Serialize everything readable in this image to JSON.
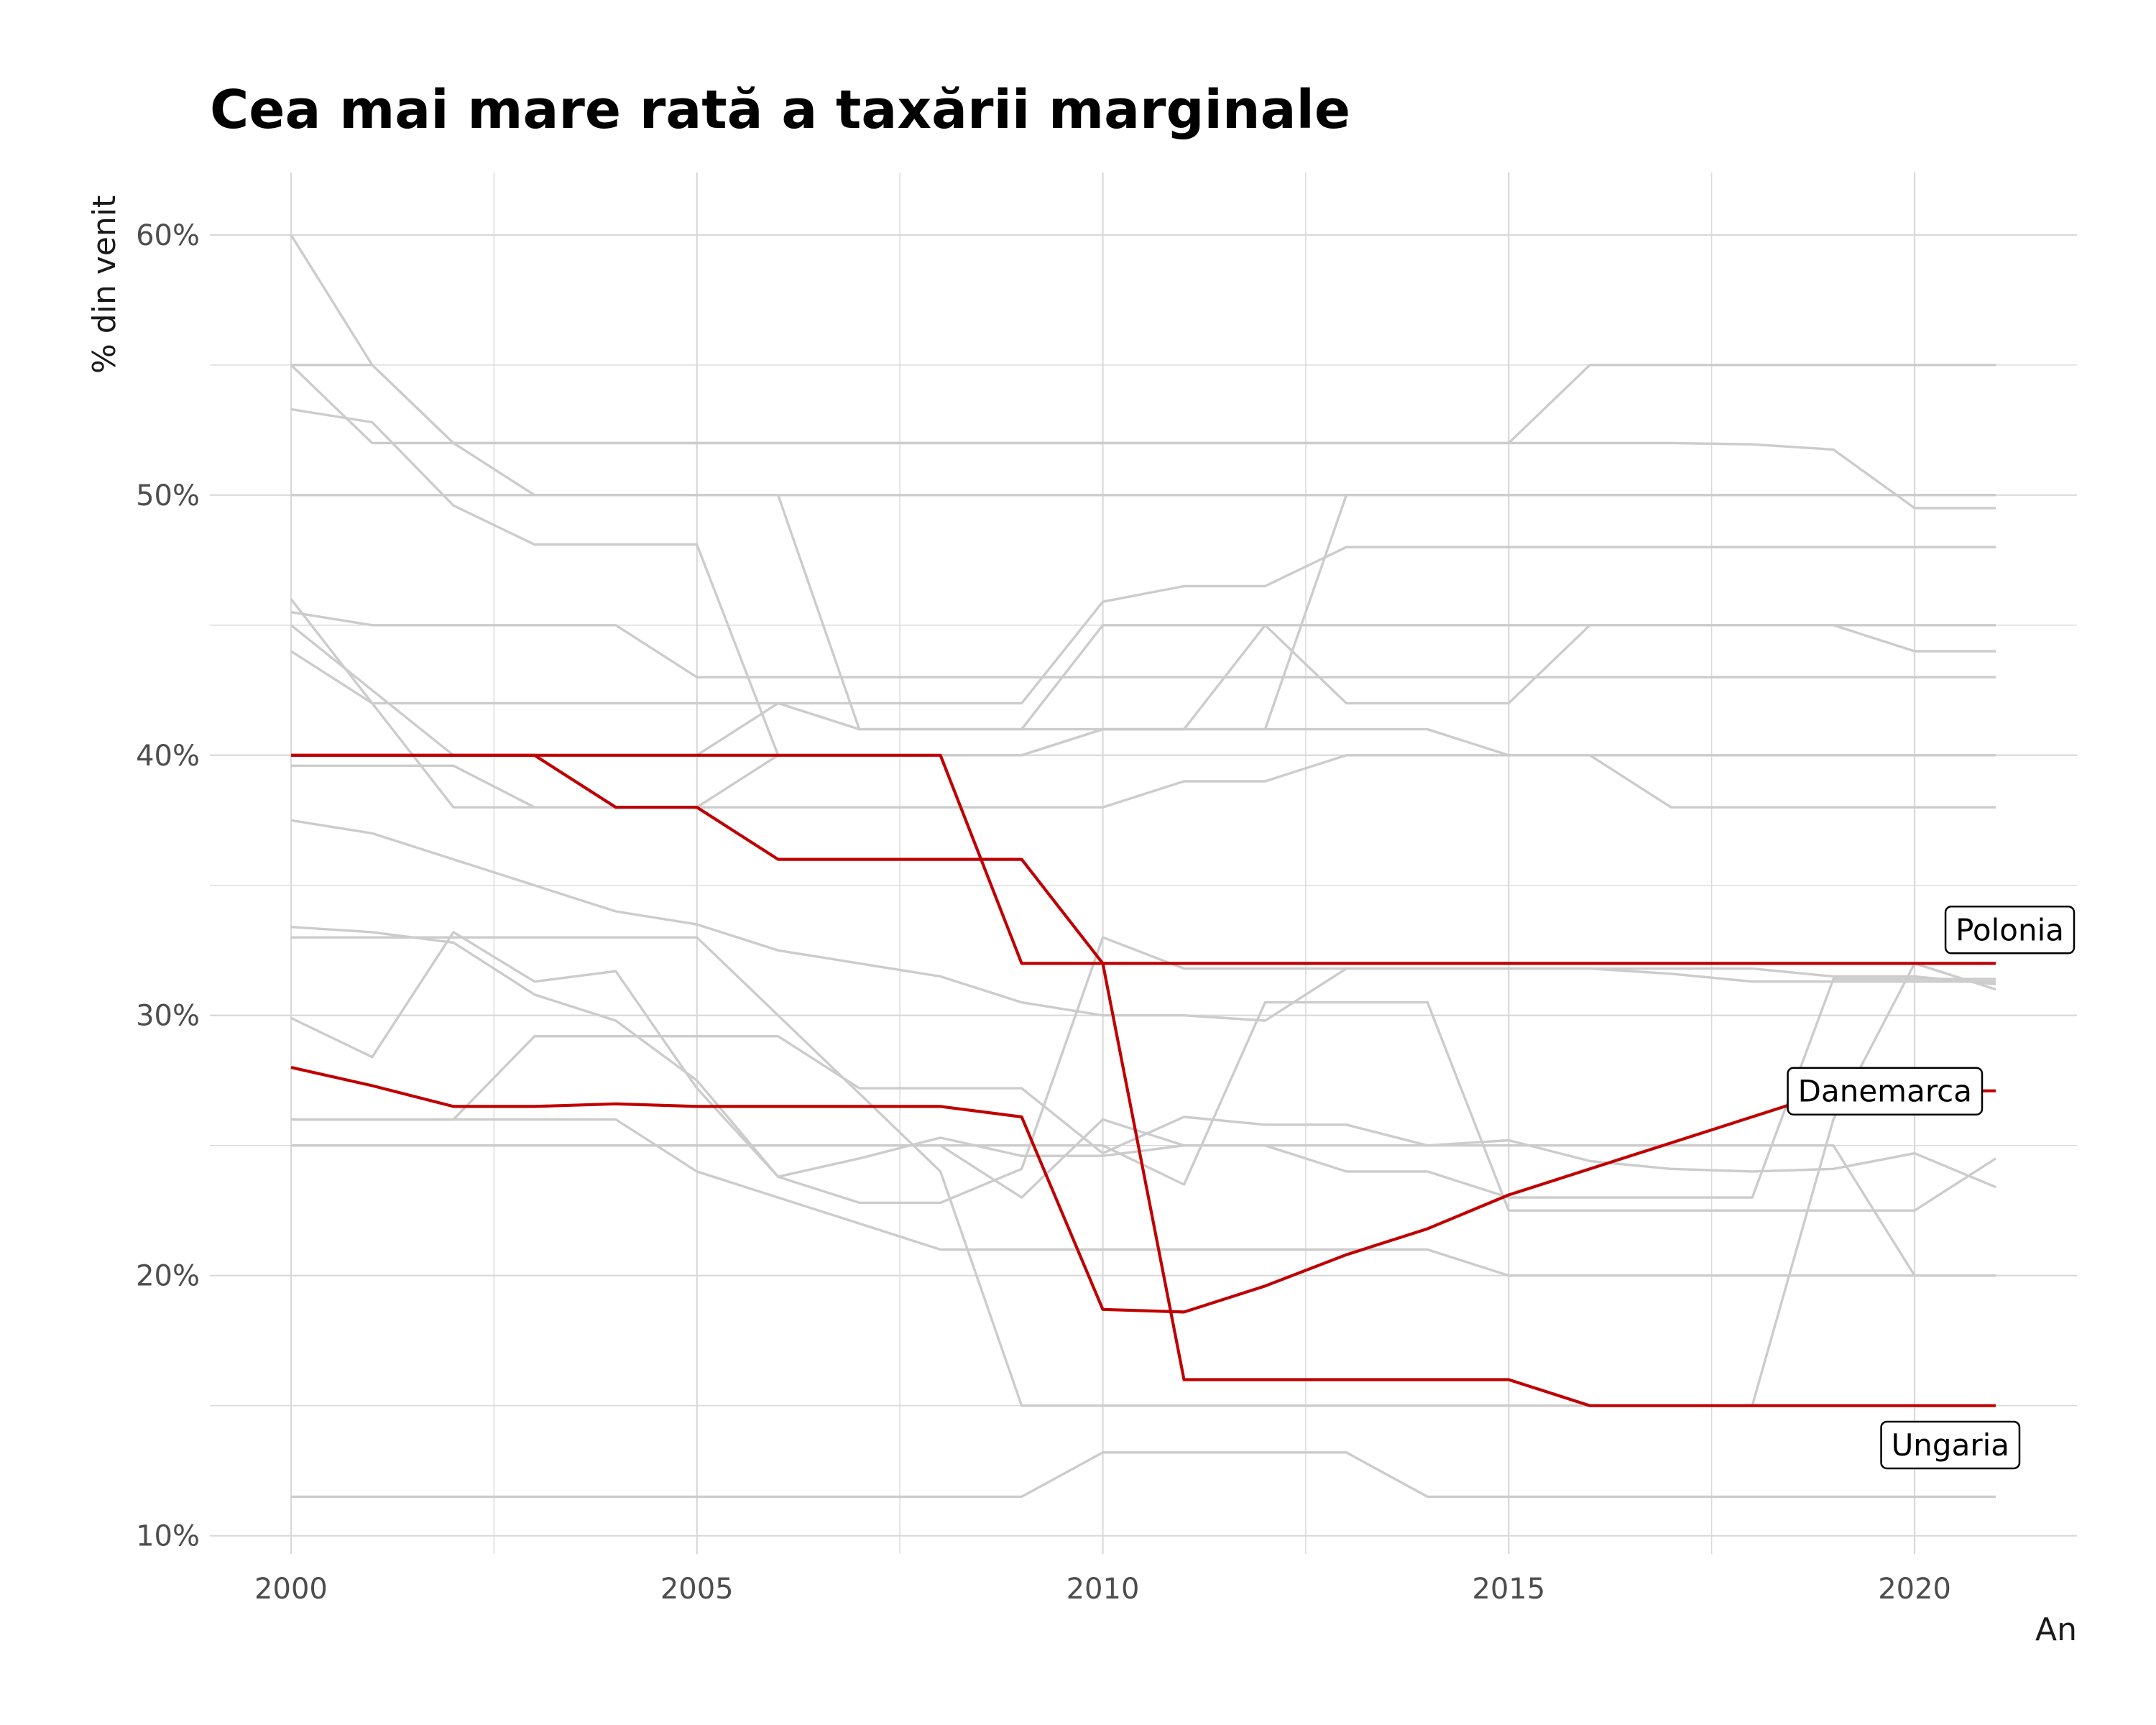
{
  "chart_data": {
    "type": "line",
    "title": "Cea mai mare rată a taxării marginale",
    "xlabel": "An",
    "ylabel": "% din venit",
    "xlim": [
      1999,
      2022
    ],
    "ylim": [
      9.3,
      62.4
    ],
    "x_ticks": [
      2000,
      2005,
      2010,
      2015,
      2020
    ],
    "x_tick_labels": [
      "2000",
      "2005",
      "2010",
      "2015",
      "2020"
    ],
    "y_ticks": [
      10,
      20,
      30,
      40,
      50,
      60
    ],
    "y_tick_labels": [
      "10%",
      "20%",
      "30%",
      "40%",
      "50%",
      "60%"
    ],
    "grid": true,
    "legend": "none",
    "colors": {
      "highlight": "#c00000",
      "background_series": "#cccccc",
      "grid": "#d9d9d9"
    },
    "x": [
      2000,
      2001,
      2002,
      2003,
      2004,
      2005,
      2006,
      2007,
      2008,
      2009,
      2010,
      2011,
      2012,
      2013,
      2014,
      2015,
      2016,
      2017,
      2018,
      2019,
      2020,
      2021
    ],
    "series": [
      {
        "highlight": false,
        "values": [
          60,
          55,
          52,
          50,
          50,
          50,
          50,
          50,
          50,
          50,
          50,
          50,
          50,
          50,
          50,
          50,
          50,
          50,
          50,
          50,
          50,
          50
        ]
      },
      {
        "highlight": false,
        "values": [
          55,
          52,
          52,
          52,
          52,
          52,
          52,
          52,
          52,
          52,
          52,
          52,
          52,
          52,
          52,
          52,
          52,
          52,
          51.95,
          51.75,
          49.5,
          49.5
        ]
      },
      {
        "highlight": false,
        "values": [
          55,
          55,
          52,
          52,
          52,
          52,
          52,
          52,
          52,
          52,
          52,
          52,
          52,
          52,
          52,
          52,
          55,
          55,
          55,
          55,
          55,
          55
        ]
      },
      {
        "highlight": false,
        "values": [
          53.3,
          52.8,
          49.6,
          48.1,
          48.1,
          48.1,
          40,
          40,
          40,
          40,
          41,
          41,
          41,
          50,
          50,
          50,
          50,
          50,
          50,
          50,
          50,
          50
        ]
      },
      {
        "highlight": false,
        "values": [
          50,
          50,
          50,
          50,
          50,
          50,
          50,
          41,
          41,
          41,
          45,
          45,
          45,
          45,
          45,
          45,
          45,
          45,
          45,
          45,
          45,
          45
        ]
      },
      {
        "highlight": false,
        "values": [
          45.5,
          45,
          45,
          45,
          45,
          43,
          43,
          43,
          43,
          43,
          43,
          43,
          43,
          43,
          43,
          43,
          43,
          43,
          43,
          43,
          43,
          43
        ]
      },
      {
        "highlight": false,
        "values": [
          46,
          42,
          42,
          42,
          42,
          42,
          42,
          42,
          42,
          42,
          45.9,
          46.5,
          46.5,
          48,
          48,
          48,
          48,
          48,
          48,
          48,
          48,
          48
        ]
      },
      {
        "highlight": false,
        "values": [
          45,
          42.5,
          40,
          40,
          40,
          40,
          42,
          41,
          41,
          41,
          41,
          41,
          45,
          42,
          42,
          42,
          45,
          45,
          45,
          45,
          44,
          44
        ]
      },
      {
        "highlight": false,
        "values": [
          44,
          42,
          38,
          38,
          38,
          38,
          38,
          38,
          38,
          38,
          38,
          39,
          39,
          40,
          40,
          40,
          40,
          38,
          38,
          38,
          38,
          38
        ]
      },
      {
        "highlight": false,
        "values": [
          39.6,
          39.6,
          39.6,
          38,
          38,
          38,
          40,
          40,
          40,
          40,
          41,
          41,
          41,
          41,
          41,
          40,
          40,
          40,
          40,
          40,
          40,
          40
        ]
      },
      {
        "highlight": false,
        "values": [
          37.5,
          37,
          36,
          35,
          34,
          33.5,
          32.5,
          32,
          31.5,
          30.5,
          30,
          30,
          29.8,
          31.8,
          31.8,
          31.8,
          31.8,
          31.6,
          31.3,
          31.3,
          31.3,
          31.3
        ]
      },
      {
        "highlight": false,
        "values": [
          33.4,
          33.2,
          32.8,
          30.8,
          29.8,
          27.5,
          23.8,
          24.5,
          25.3,
          24.6,
          24.6,
          25,
          25,
          25,
          25,
          25,
          25,
          25,
          25,
          25,
          20,
          20
        ]
      },
      {
        "highlight": false,
        "values": [
          33,
          33,
          33,
          33,
          33,
          33,
          30,
          27,
          24,
          15,
          15,
          15,
          15,
          15,
          15,
          15,
          15,
          15,
          15,
          26,
          32,
          31
        ]
      },
      {
        "highlight": false,
        "values": [
          29.9,
          28.4,
          33.2,
          31.3,
          31.7,
          27.2,
          23.8,
          22.8,
          22.8,
          24.1,
          33,
          31.8,
          31.8,
          31.8,
          31.8,
          31.8,
          31.8,
          31.8,
          31.8,
          31.5,
          31.5,
          31.2
        ]
      },
      {
        "highlight": false,
        "values": [
          26,
          26,
          26,
          26,
          26,
          24,
          23,
          22,
          21,
          21,
          21,
          21,
          21,
          21,
          21,
          20,
          20,
          20,
          20,
          20,
          20,
          20
        ]
      },
      {
        "highlight": false,
        "values": [
          25,
          25,
          25,
          25,
          25,
          25,
          25,
          25,
          25,
          23,
          26,
          25,
          25,
          24,
          24,
          23,
          23,
          23,
          23,
          31.4,
          31.4,
          31.4
        ]
      },
      {
        "highlight": false,
        "values": [
          26,
          26,
          26,
          29.2,
          29.2,
          29.2,
          29.2,
          27.2,
          27.2,
          27.2,
          24.7,
          26.1,
          25.8,
          25.8,
          25,
          25.2,
          24.4,
          24.1,
          24,
          24.1,
          24.7,
          23.4
        ]
      },
      {
        "highlight": false,
        "values": [
          25,
          25,
          25,
          25,
          25,
          25,
          25,
          25,
          25,
          25,
          25,
          23.5,
          30.5,
          30.5,
          30.5,
          22.5,
          22.5,
          22.5,
          22.5,
          22.5,
          22.5,
          24.5
        ]
      },
      {
        "highlight": false,
        "values": [
          11.5,
          11.5,
          11.5,
          11.5,
          11.5,
          11.5,
          11.5,
          11.5,
          11.5,
          11.5,
          13.2,
          13.2,
          13.2,
          13.2,
          11.5,
          11.5,
          11.5,
          11.5,
          11.5,
          11.5,
          11.5,
          11.5
        ]
      },
      {
        "name": "Polonia",
        "highlight": true,
        "values": [
          40,
          40,
          40,
          40,
          40,
          40,
          40,
          40,
          40,
          32,
          32,
          32,
          32,
          32,
          32,
          32,
          32,
          32,
          32,
          32,
          32,
          32
        ]
      },
      {
        "name": "Ungaria",
        "highlight": true,
        "values": [
          40,
          40,
          40,
          40,
          38,
          38,
          36,
          36,
          36,
          36,
          32,
          16,
          16,
          16,
          16,
          16,
          15,
          15,
          15,
          15,
          15,
          15
        ]
      },
      {
        "name": "Danemarca",
        "highlight": true,
        "values": [
          28,
          27.3,
          26.5,
          26.5,
          26.6,
          26.5,
          26.5,
          26.5,
          26.5,
          26.1,
          18.7,
          18.6,
          19.6,
          20.8,
          21.8,
          23.1,
          24.1,
          25.1,
          26.1,
          27.1,
          27.1,
          27.1
        ]
      }
    ]
  }
}
